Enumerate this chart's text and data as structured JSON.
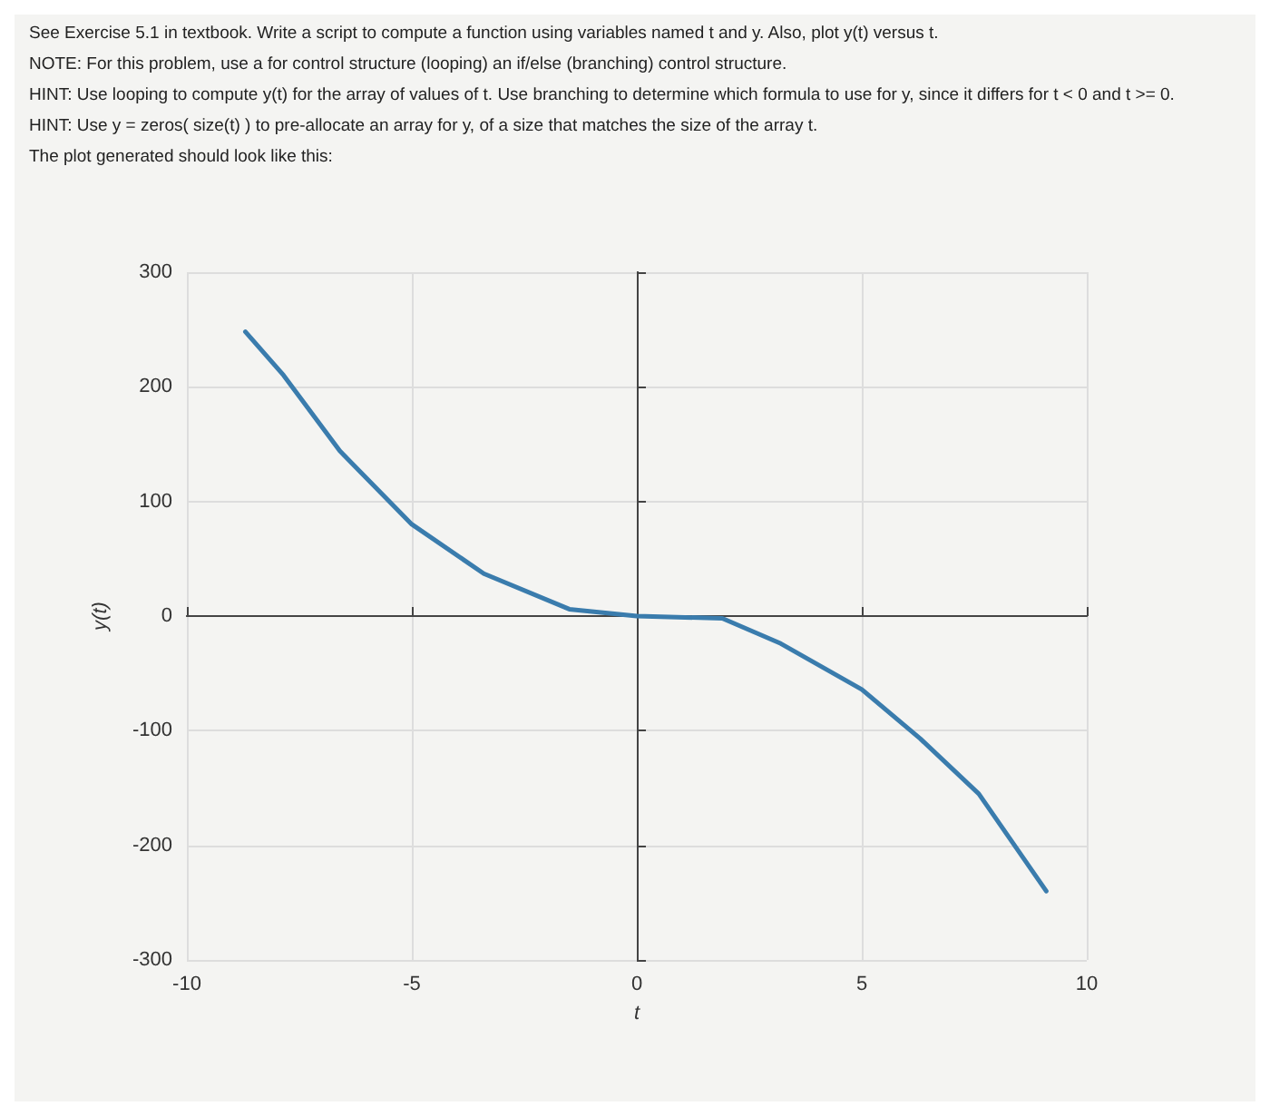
{
  "chart_data": {
    "type": "line",
    "annotations": [
      "See Exercise 5.1 in textbook. Write a script to compute a function using variables named t and y. Also, plot y(t) versus t.",
      "NOTE: For this problem, use a for control structure (looping) an if/else (branching) control structure.",
      "HINT: Use looping to compute y(t) for the array of values of t. Use branching to determine which formula to use for y, since it differs for t < 0 and t >= 0.",
      "HINT: Use y = zeros( size(t) ) to pre-allocate an array for y, of a size that matches the size of the array t.",
      "The plot generated should look like this:"
    ],
    "xlabel": "t",
    "ylabel": "y(t)",
    "xlim": [
      -10,
      10
    ],
    "xticks": [
      -10,
      -5,
      0,
      5,
      10
    ],
    "ylim": [
      -300,
      300
    ],
    "yticks": [
      -300,
      -200,
      -100,
      0,
      100,
      200,
      300
    ],
    "grid": true,
    "marker": "none",
    "line_style": "solid",
    "series": [
      {
        "color": "#3a7cad",
        "x": [
          -8.7,
          -7.85,
          -6.6,
          -5,
          -3.4,
          -1.5,
          0,
          1.9,
          3.2,
          5,
          6.3,
          7.6,
          9.1
        ],
        "values": [
          248,
          210,
          144,
          80,
          37,
          6,
          0,
          -2,
          -24,
          -64,
          -107,
          -155,
          -240
        ]
      }
    ]
  }
}
